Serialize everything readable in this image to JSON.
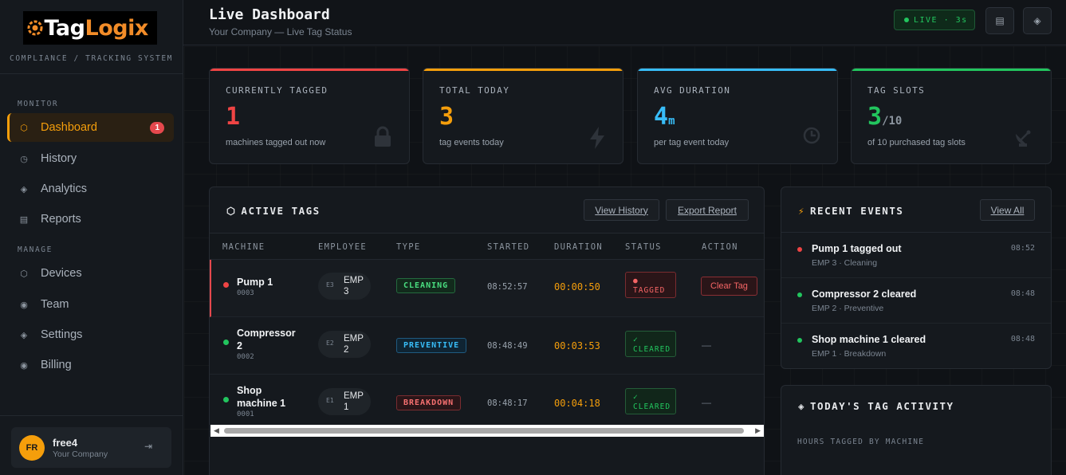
{
  "brand": {
    "logo_part1": "Tag",
    "logo_part2": "Logix",
    "tagline": "COMPLIANCE / TRACKING SYSTEM"
  },
  "sidebar": {
    "section_monitor": "MONITOR",
    "section_manage": "MANAGE",
    "items": [
      {
        "label": "Dashboard",
        "icon": "hexagon-icon",
        "badge": "1",
        "active": true
      },
      {
        "label": "History",
        "icon": "clock-icon"
      },
      {
        "label": "Analytics",
        "icon": "diamond-icon"
      },
      {
        "label": "Reports",
        "icon": "list-icon"
      },
      {
        "label": "Devices",
        "icon": "hexagon-icon"
      },
      {
        "label": "Team",
        "icon": "circle-dot-icon"
      },
      {
        "label": "Settings",
        "icon": "diamond-icon"
      },
      {
        "label": "Billing",
        "icon": "circle-dot-icon"
      }
    ],
    "user": {
      "initials": "FR",
      "name": "free4",
      "org": "Your Company"
    }
  },
  "header": {
    "title": "Live Dashboard",
    "subtitle": "Your Company — Live Tag Status",
    "live_label": "LIVE · 3s"
  },
  "stats": [
    {
      "label": "CURRENTLY TAGGED",
      "value": "1",
      "unit": "",
      "desc": "machines tagged out now",
      "color": "#ef4444",
      "icon": "lock-icon"
    },
    {
      "label": "TOTAL TODAY",
      "value": "3",
      "unit": "",
      "desc": "tag events today",
      "color": "#f59e0b",
      "icon": "lightning-icon"
    },
    {
      "label": "AVG DURATION",
      "value": "4",
      "unit": "m",
      "desc": "per tag event today",
      "color": "#38bdf8",
      "icon": "clock-icon"
    },
    {
      "label": "TAG SLOTS",
      "value": "3",
      "unit": "/10",
      "desc": "of 10 purchased tag slots",
      "color": "#22c55e",
      "icon": "satellite-icon"
    }
  ],
  "active_tags": {
    "title": "ACTIVE TAGS",
    "view_history": "View History",
    "export_report": "Export Report",
    "columns": [
      "MACHINE",
      "EMPLOYEE",
      "TYPE",
      "STARTED",
      "DURATION",
      "STATUS",
      "ACTION"
    ],
    "rows": [
      {
        "machine": "Pump 1",
        "code": "0003",
        "emp_initials": "E3",
        "emp": "EMP 3",
        "type": "CLEANING",
        "started": "08:52:57",
        "duration": "00:00:50",
        "status": "TAGGED",
        "action": "Clear Tag"
      },
      {
        "machine": "Compressor 2",
        "code": "0002",
        "emp_initials": "E2",
        "emp": "EMP 2",
        "type": "PREVENTIVE",
        "started": "08:48:49",
        "duration": "00:03:53",
        "status": "CLEARED",
        "action": "—"
      },
      {
        "machine": "Shop machine 1",
        "code": "0001",
        "emp_initials": "E1",
        "emp": "EMP 1",
        "type": "BREAKDOWN",
        "started": "08:48:17",
        "duration": "00:04:18",
        "status": "CLEARED",
        "action": "—"
      }
    ]
  },
  "recent_events": {
    "title": "RECENT EVENTS",
    "view_all": "View All",
    "items": [
      {
        "title": "Pump 1 tagged out",
        "sub": "EMP 3 · Cleaning",
        "time": "08:52",
        "color": "#ef4444"
      },
      {
        "title": "Compressor 2 cleared",
        "sub": "EMP 2 · Preventive",
        "time": "08:48",
        "color": "#22c55e"
      },
      {
        "title": "Shop machine 1 cleared",
        "sub": "EMP 1 · Breakdown",
        "time": "08:48",
        "color": "#22c55e"
      }
    ]
  },
  "tag_activity": {
    "title": "TODAY'S TAG ACTIVITY",
    "subtitle": "HOURS TAGGED BY MACHINE"
  }
}
